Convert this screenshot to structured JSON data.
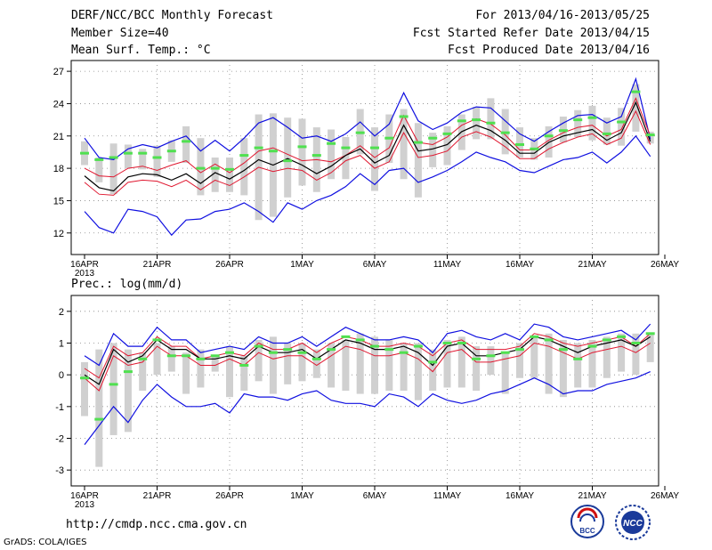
{
  "header": {
    "title": "DERF/NCC/BCC Monthly Forecast",
    "member_size": "Member Size=40",
    "variable": "Mean Surf. Temp.: °C",
    "period": "For 2013/04/16-2013/05/25",
    "started": "Fcst Started Refer Date 2013/04/15",
    "produced": "Fcst Produced Date 2013/04/16"
  },
  "footer": {
    "url": "http://cmdp.ncc.cma.gov.cn",
    "grads": "GrADS: COLA/IGES",
    "logo_bcc": "BCC",
    "logo_ncc": "NCC"
  },
  "colors": {
    "box": "#d0d0d0",
    "ensemble_mean": "#000000",
    "interval": "#e01830",
    "extremes": "#1010e0",
    "member_mark": "#50e050",
    "grid": "#888888"
  },
  "chart_data": [
    {
      "type": "line",
      "title": "Mean Surf. Temp.: °C",
      "xlabel": "",
      "ylabel": "°C",
      "x_ticks": [
        "16APR",
        "21APR",
        "26APR",
        "1MAY",
        "6MAY",
        "11MAY",
        "16MAY",
        "21MAY",
        "26MAY"
      ],
      "x_year_label": "2013",
      "ylim": [
        10,
        28
      ],
      "yticks": [
        12,
        15,
        18,
        21,
        24,
        27
      ],
      "days": 40,
      "series": [
        {
          "name": "max",
          "values": [
            20.8,
            19.0,
            18.8,
            19.8,
            20.2,
            19.9,
            20.5,
            21.0,
            19.6,
            20.6,
            19.6,
            20.8,
            22.2,
            22.7,
            21.8,
            20.8,
            21.0,
            20.5,
            21.2,
            22.3,
            21.0,
            22.1,
            25.0,
            22.4,
            21.6,
            22.2,
            23.2,
            23.7,
            23.6,
            22.4,
            21.2,
            20.5,
            21.4,
            22.2,
            22.9,
            23.0,
            22.2,
            22.8,
            26.3,
            20.7
          ]
        },
        {
          "name": "upper",
          "values": [
            18.0,
            17.3,
            17.2,
            18.0,
            18.2,
            17.8,
            18.3,
            18.7,
            17.6,
            18.4,
            17.6,
            18.5,
            19.6,
            19.9,
            19.3,
            18.7,
            18.8,
            18.6,
            19.2,
            20.1,
            19.0,
            19.9,
            22.9,
            20.4,
            20.2,
            20.9,
            22.0,
            22.6,
            22.1,
            21.1,
            19.7,
            19.7,
            20.6,
            21.3,
            21.8,
            22.0,
            21.0,
            21.6,
            24.5,
            21.0
          ]
        },
        {
          "name": "mean",
          "values": [
            17.3,
            16.2,
            15.9,
            17.2,
            17.5,
            17.4,
            16.9,
            17.5,
            16.6,
            17.6,
            17.0,
            17.8,
            18.8,
            18.3,
            18.9,
            18.3,
            17.5,
            18.2,
            19.2,
            19.8,
            18.5,
            19.2,
            22.0,
            19.6,
            19.8,
            20.2,
            21.4,
            22.0,
            21.5,
            20.6,
            19.4,
            19.4,
            20.4,
            21.0,
            21.3,
            21.6,
            20.6,
            21.3,
            24.1,
            20.5
          ]
        },
        {
          "name": "lower",
          "values": [
            16.7,
            15.6,
            15.5,
            16.7,
            16.9,
            16.8,
            16.3,
            16.9,
            16.0,
            16.9,
            16.4,
            17.2,
            18.1,
            17.7,
            18.0,
            17.8,
            16.9,
            17.6,
            18.7,
            19.2,
            18.0,
            18.6,
            21.3,
            19.0,
            19.2,
            19.6,
            20.9,
            21.4,
            20.9,
            20.0,
            18.9,
            18.9,
            19.8,
            20.4,
            20.9,
            21.2,
            20.2,
            20.8,
            23.3,
            20.2
          ]
        },
        {
          "name": "min",
          "values": [
            14.0,
            12.5,
            12.0,
            14.2,
            14.0,
            13.5,
            11.8,
            13.2,
            13.3,
            14.0,
            14.2,
            14.8,
            14.0,
            13.0,
            14.8,
            14.2,
            15.0,
            15.5,
            16.3,
            17.5,
            16.5,
            17.8,
            18.0,
            16.7,
            17.2,
            17.8,
            18.6,
            19.5,
            19.0,
            18.6,
            17.8,
            17.6,
            18.2,
            18.8,
            19.0,
            19.5,
            18.5,
            19.5,
            21.0,
            19.1
          ]
        },
        {
          "name": "member_marks",
          "values": [
            19.4,
            18.8,
            19.0,
            19.4,
            19.4,
            19.0,
            19.6,
            20.5,
            18.0,
            18.0,
            17.9,
            19.2,
            19.9,
            19.6,
            18.7,
            20.0,
            19.2,
            20.3,
            19.9,
            21.3,
            19.9,
            20.8,
            22.8,
            20.4,
            20.8,
            21.2,
            22.4,
            22.5,
            22.2,
            21.3,
            20.2,
            19.8,
            21.0,
            21.5,
            22.5,
            22.7,
            21.2,
            22.3,
            25.1,
            21.1
          ]
        },
        {
          "name": "box_high",
          "values": [
            20.5,
            19.0,
            20.3,
            20.2,
            19.8,
            20.1,
            20.6,
            21.9,
            20.8,
            19.0,
            19.0,
            20.8,
            23.0,
            23.1,
            22.7,
            22.6,
            21.8,
            21.6,
            20.9,
            23.5,
            21.8,
            23.0,
            23.5,
            22.2,
            21.3,
            21.9,
            23.0,
            23.7,
            24.5,
            23.5,
            21.8,
            20.8,
            21.9,
            22.8,
            23.4,
            23.8,
            22.7,
            23.6,
            25.8,
            21.4
          ]
        },
        {
          "name": "box_low",
          "values": [
            18.3,
            16.7,
            15.6,
            18.0,
            17.9,
            17.2,
            18.6,
            18.5,
            15.5,
            15.8,
            15.8,
            15.5,
            13.2,
            13.5,
            15.3,
            16.4,
            15.8,
            17.0,
            17.0,
            19.3,
            15.9,
            18.5,
            17.0,
            15.3,
            18.1,
            18.3,
            19.7,
            20.7,
            20.7,
            19.3,
            19.0,
            18.8,
            19.0,
            20.4,
            20.9,
            20.6,
            20.2,
            20.1,
            21.4,
            20.3
          ]
        }
      ]
    },
    {
      "type": "line",
      "title": "Prec.: log(mm/d)",
      "xlabel": "",
      "ylabel": "log(mm/d)",
      "x_ticks": [
        "16APR",
        "21APR",
        "26APR",
        "1MAY",
        "6MAY",
        "11MAY",
        "16MAY",
        "21MAY",
        "26MAY"
      ],
      "x_year_label": "2013",
      "ylim": [
        -3.5,
        2.5
      ],
      "yticks": [
        -3,
        -2,
        -1,
        0,
        1,
        2
      ],
      "days": 40,
      "series": [
        {
          "name": "max",
          "values": [
            0.6,
            0.3,
            1.3,
            0.9,
            0.9,
            1.5,
            1.1,
            1.1,
            0.7,
            0.8,
            0.9,
            0.8,
            1.2,
            1.0,
            1.0,
            1.2,
            0.9,
            1.2,
            1.5,
            1.3,
            1.1,
            1.1,
            1.2,
            1.1,
            0.7,
            1.3,
            1.4,
            1.2,
            1.1,
            1.3,
            1.1,
            1.6,
            1.5,
            1.2,
            1.1,
            1.2,
            1.3,
            1.4,
            1.1,
            1.6
          ]
        },
        {
          "name": "upper",
          "values": [
            0.2,
            -0.1,
            0.9,
            0.6,
            0.7,
            1.2,
            0.9,
            0.9,
            0.5,
            0.6,
            0.7,
            0.6,
            1.0,
            0.8,
            0.8,
            1.0,
            0.7,
            1.0,
            1.2,
            1.1,
            0.9,
            0.9,
            1.0,
            0.9,
            0.6,
            1.0,
            1.1,
            0.8,
            0.8,
            0.8,
            0.9,
            1.3,
            1.2,
            1.0,
            0.9,
            1.0,
            1.1,
            1.2,
            0.9,
            1.3
          ]
        },
        {
          "name": "mean",
          "values": [
            0.0,
            -0.3,
            0.8,
            0.4,
            0.6,
            1.1,
            0.8,
            0.8,
            0.5,
            0.5,
            0.6,
            0.5,
            0.9,
            0.7,
            0.7,
            0.8,
            0.5,
            0.8,
            1.1,
            1.0,
            0.8,
            0.8,
            0.9,
            0.7,
            0.3,
            0.9,
            1.0,
            0.6,
            0.6,
            0.7,
            0.8,
            1.2,
            1.1,
            0.9,
            0.7,
            0.9,
            1.0,
            1.1,
            0.9,
            1.2
          ]
        },
        {
          "name": "lower",
          "values": [
            -0.1,
            -0.5,
            0.6,
            0.3,
            0.4,
            0.9,
            0.6,
            0.6,
            0.3,
            0.3,
            0.5,
            0.3,
            0.7,
            0.5,
            0.6,
            0.6,
            0.3,
            0.6,
            0.9,
            0.8,
            0.6,
            0.6,
            0.7,
            0.5,
            0.1,
            0.7,
            0.8,
            0.4,
            0.4,
            0.5,
            0.6,
            1.0,
            0.9,
            0.7,
            0.5,
            0.7,
            0.8,
            0.9,
            0.7,
            1.0
          ]
        },
        {
          "name": "min",
          "values": [
            -2.2,
            -1.6,
            -1.0,
            -1.5,
            -0.8,
            -0.3,
            -0.7,
            -1.0,
            -1.0,
            -0.9,
            -1.2,
            -0.6,
            -0.7,
            -0.7,
            -0.8,
            -0.6,
            -0.5,
            -0.8,
            -0.9,
            -0.9,
            -1.0,
            -0.6,
            -0.7,
            -1.0,
            -0.6,
            -0.8,
            -0.9,
            -0.8,
            -0.6,
            -0.5,
            -0.3,
            -0.1,
            -0.3,
            -0.6,
            -0.5,
            -0.5,
            -0.3,
            -0.2,
            -0.1,
            0.1
          ]
        },
        {
          "name": "member_marks",
          "values": [
            -0.1,
            -1.4,
            -0.3,
            0.1,
            0.5,
            1.1,
            0.6,
            0.6,
            0.5,
            0.6,
            0.7,
            0.3,
            0.9,
            0.7,
            0.8,
            0.7,
            0.5,
            0.8,
            1.2,
            1.1,
            0.9,
            0.8,
            0.7,
            0.9,
            0.4,
            1.0,
            1.0,
            0.5,
            0.6,
            0.7,
            0.8,
            1.2,
            1.1,
            0.8,
            0.5,
            0.9,
            1.1,
            1.2,
            1.0,
            1.3
          ]
        },
        {
          "name": "box_high",
          "values": [
            0.4,
            0.8,
            1.0,
            0.8,
            0.7,
            1.0,
            0.9,
            0.7,
            0.8,
            0.6,
            0.9,
            0.6,
            1.1,
            1.2,
            1.0,
            1.0,
            0.8,
            1.0,
            1.1,
            1.3,
            1.2,
            1.1,
            1.0,
            1.0,
            0.8,
            1.1,
            1.2,
            0.9,
            0.9,
            0.7,
            1.0,
            1.2,
            1.3,
            1.1,
            1.0,
            1.1,
            1.2,
            1.3,
            1.3,
            1.3
          ]
        },
        {
          "name": "box_low",
          "values": [
            -1.3,
            -2.9,
            -1.9,
            -1.8,
            -0.5,
            0.0,
            0.1,
            -0.6,
            -0.4,
            0.1,
            -0.7,
            -0.5,
            -0.2,
            -0.6,
            -0.3,
            -0.2,
            -0.1,
            -0.4,
            -0.5,
            -0.6,
            -0.6,
            -0.5,
            -0.5,
            -0.8,
            -0.5,
            -0.4,
            -0.4,
            -0.5,
            0.0,
            -0.6,
            -0.1,
            -0.1,
            -0.6,
            -0.7,
            -0.4,
            -0.4,
            -0.1,
            0.1,
            0.0,
            0.4
          ]
        }
      ]
    }
  ]
}
